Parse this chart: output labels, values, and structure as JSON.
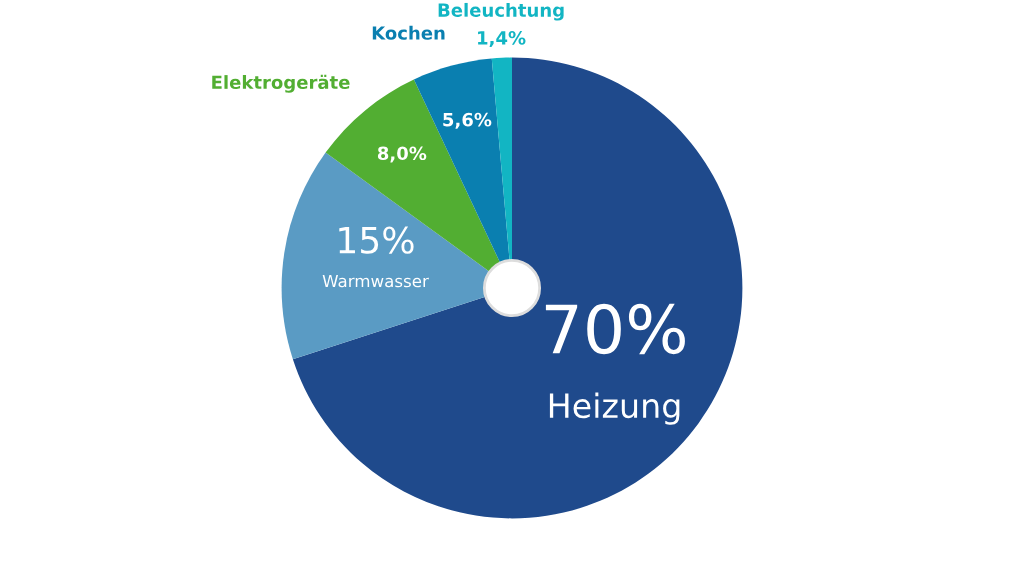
{
  "chart_data": {
    "type": "pie",
    "categories": [
      "Heizung",
      "Warmwasser",
      "Elektrogeräte",
      "Kochen",
      "Beleuchtung"
    ],
    "values": [
      70,
      15,
      8.0,
      5.6,
      1.4
    ],
    "colors": [
      "#1f4a8c",
      "#5a9bc4",
      "#52ae32",
      "#0a7fb0",
      "#12b5c3"
    ],
    "value_labels": [
      "70%",
      "15%",
      "8,0%",
      "5,6%",
      "1,4%"
    ],
    "legend": false
  }
}
